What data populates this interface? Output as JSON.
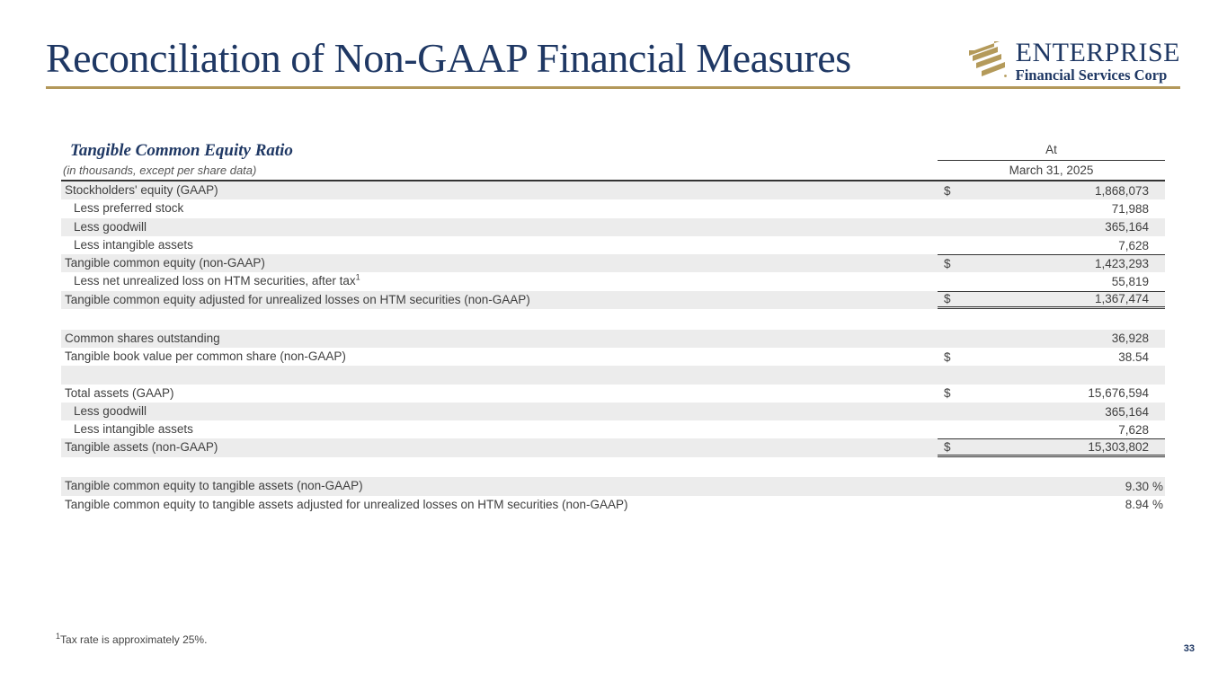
{
  "slide": {
    "title": "Reconciliation of Non-GAAP Financial Measures",
    "page_number": "33",
    "footnote_sup": "1",
    "footnote_text": "Tax rate is approximately 25%."
  },
  "logo": {
    "name": "ENTERPRISE",
    "subtitle": "Financial Services Corp",
    "icon": "gold-diagonal-stripes-mark",
    "colors": {
      "navy": "#1F3864",
      "gold": "#B49A5A"
    }
  },
  "colors": {
    "accent_navy": "#1F3864",
    "accent_gold": "#B3985A",
    "row_shade": "#ECECEC",
    "table_text": "#404040"
  },
  "table": {
    "section_title": "Tangible Common Equity Ratio",
    "units_note": "(in thousands, except per share data)",
    "col_header_top": "At",
    "col_header_date": "March 31, 2025",
    "rows": [
      {
        "label": "Stockholders' equity (GAAP)",
        "dollar": "$",
        "value": "1,868,073",
        "shaded": true
      },
      {
        "label": "Less preferred stock",
        "indent": true,
        "value": "71,988",
        "shaded": false
      },
      {
        "label": "Less goodwill",
        "indent": true,
        "value": "365,164",
        "shaded": true
      },
      {
        "label": "Less intangible assets",
        "indent": true,
        "value": "7,628",
        "shaded": false
      },
      {
        "label": "Tangible common equity (non-GAAP)",
        "dollar": "$",
        "value": "1,423,293",
        "shaded": true,
        "line_top": true
      },
      {
        "label": "Less net unrealized loss on HTM securities, after tax",
        "label_sup": "1",
        "indent": true,
        "value": "55,819",
        "shaded": false
      },
      {
        "label": "Tangible common equity adjusted for unrealized losses on HTM securities (non-GAAP)",
        "dollar": "$",
        "value": "1,367,474",
        "shaded": true,
        "line_top": true,
        "double_bottom": true
      },
      {
        "type": "spacer"
      },
      {
        "label": "Common shares outstanding",
        "value": "36,928",
        "shaded": true
      },
      {
        "label": "Tangible book value per common share (non-GAAP)",
        "dollar": "$",
        "value": "38.54",
        "shaded": false
      },
      {
        "label": "",
        "value": "",
        "shaded": true
      },
      {
        "label": "Total assets (GAAP)",
        "dollar": "$",
        "value": "15,676,594",
        "shaded": false
      },
      {
        "label": "Less goodwill",
        "indent": true,
        "value": "365,164",
        "shaded": true
      },
      {
        "label": "Less intangible assets",
        "indent": true,
        "value": "7,628",
        "shaded": false
      },
      {
        "label": "Tangible assets (non-GAAP)",
        "dollar": "$",
        "value": "15,303,802",
        "shaded": true,
        "line_top": true,
        "double_bottom": true
      },
      {
        "type": "spacer"
      },
      {
        "label": "Tangible common equity to tangible assets (non-GAAP)",
        "value": "9.30",
        "suffix": "%",
        "shaded": true
      },
      {
        "label": "Tangible common equity to tangible assets adjusted for unrealized losses on HTM securities (non-GAAP)",
        "value": "8.94",
        "suffix": "%",
        "shaded": false
      }
    ]
  }
}
